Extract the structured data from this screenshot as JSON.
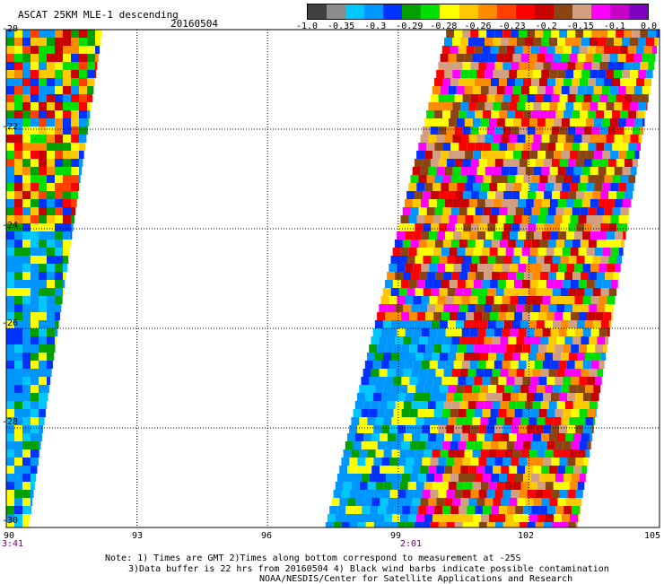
{
  "header": {
    "title": "ASCAT 25KM MLE-1 descending",
    "date": "20160504"
  },
  "colorbar": {
    "colors": [
      "#404040",
      "#8c8c8c",
      "#00c8ff",
      "#0096ff",
      "#0032ff",
      "#00a000",
      "#00e000",
      "#ffff00",
      "#ffc800",
      "#ff8c00",
      "#ff4000",
      "#ff0000",
      "#c80000",
      "#8b4513",
      "#d2a080",
      "#ff00ff",
      "#c800c8",
      "#8000c0"
    ],
    "labels": [
      "-1.0",
      "-0.35",
      "-0.3",
      "-0.29",
      "-0.28",
      "-0.26",
      "-0.23",
      "-0.2",
      "-0.15",
      "-0.1",
      "0.0"
    ]
  },
  "axes": {
    "x_ticks": [
      "90",
      "93",
      "96",
      "99",
      "102",
      "105"
    ],
    "y_ticks": [
      "-20",
      "-22",
      "-24",
      "-26",
      "-28",
      "-30"
    ],
    "time_labels": [
      "3:41",
      "2:01"
    ]
  },
  "notes": [
    "Note: 1) Times are GMT 2)Times along bottom correspond to measurement at -25S",
    "3)Data buffer is 22 hrs from 20160504 4) Black wind barbs indicate possible contamination",
    "NOAA/NESDIS/Center for Satellite Applications and Research"
  ],
  "chart_data": {
    "type": "heatmap",
    "title": "ASCAT 25KM MLE-1 descending",
    "xlabel": "",
    "ylabel": "",
    "xlim": [
      90,
      105
    ],
    "ylim": [
      -30,
      -20
    ],
    "grid": true,
    "swaths": [
      {
        "time": "3:41",
        "lon_left_top": 90,
        "lon_right_top": 92.2,
        "lon_left_bottom": 90,
        "lon_right_bottom": 90.5
      },
      {
        "time": "2:01",
        "lon_left_top": 100.1,
        "lon_right_top": 105,
        "lon_left_bottom": 97.3,
        "lon_right_bottom": 103.1
      }
    ]
  }
}
